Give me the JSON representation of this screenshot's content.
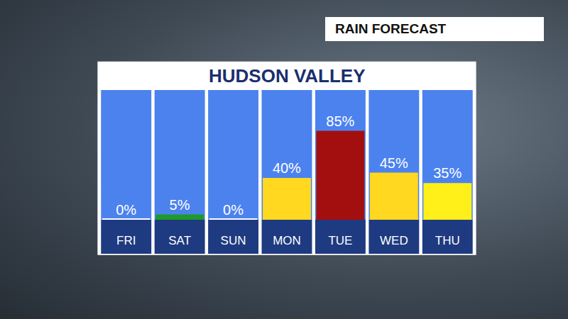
{
  "chart_data": {
    "type": "bar",
    "title": "HUDSON VALLEY",
    "subtitle": "RAIN FORECAST",
    "categories": [
      "FRI",
      "SAT",
      "SUN",
      "MON",
      "TUE",
      "WED",
      "THU"
    ],
    "values": [
      0,
      5,
      0,
      40,
      85,
      45,
      35
    ],
    "value_labels": [
      "0%",
      "5%",
      "0%",
      "40%",
      "85%",
      "45%",
      "35%"
    ],
    "colors": [
      "#ffffff",
      "#1f9a2a",
      "#ffffff",
      "#ffd81f",
      "#a30f0f",
      "#ffd81f",
      "#fff01a"
    ],
    "ylim": [
      0,
      124
    ],
    "grid": false,
    "data_labels": true,
    "tick_labels": "x"
  }
}
